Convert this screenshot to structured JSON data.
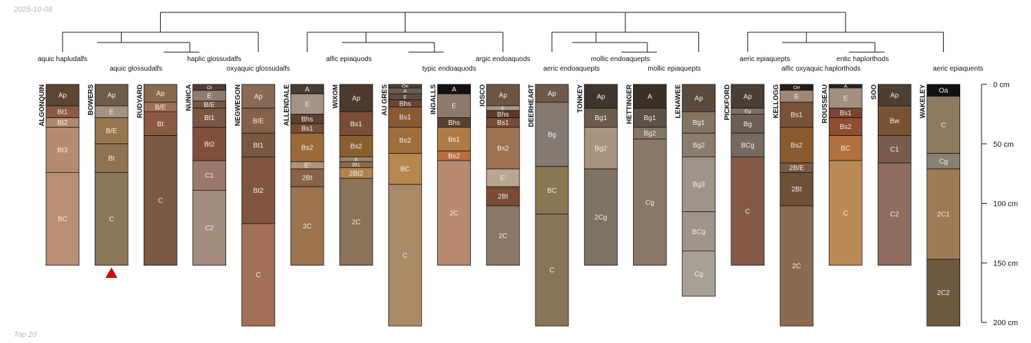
{
  "date": "2025-10-08",
  "footer": "Top 20",
  "depth_axis": {
    "unit": "cm",
    "max_depth": 200,
    "ticks": [
      {
        "depth": 0,
        "label": "0 cm"
      },
      {
        "depth": 50,
        "label": "50 cm"
      },
      {
        "depth": 100,
        "label": "100 cm"
      },
      {
        "depth": 150,
        "label": "150 cm"
      },
      {
        "depth": 200,
        "label": "200 cm"
      }
    ]
  },
  "marker": {
    "profile": "BOWERS",
    "shape": "triangle",
    "color": "#e00000"
  },
  "group_labels": [
    {
      "text": "aquic hapludalfs",
      "column": 0
    },
    {
      "text": "aquic glossudalfs",
      "column": 1.5
    },
    {
      "text": "haplic glossudalfs",
      "column": 3.1
    },
    {
      "text": "oxyaquic glossudalfs",
      "column": 4.0
    },
    {
      "text": "alfic epiaquods",
      "column": 5.85
    },
    {
      "text": "typic endoaquods",
      "column": 7.9
    },
    {
      "text": "argic endoaquods",
      "column": 9.0
    },
    {
      "text": "aeric endoaquepts",
      "column": 10.4
    },
    {
      "text": "mollic endoaquepts",
      "column": 11.4
    },
    {
      "text": "mollic epiaquepts",
      "column": 12.5
    },
    {
      "text": "aeric epiaquepts",
      "column": 14.35
    },
    {
      "text": "alfic oxyaquic haplorthods",
      "column": 15.5
    },
    {
      "text": "entic haplorthods",
      "column": 16.35
    },
    {
      "text": "aeric epiaquents",
      "column": 18.3
    }
  ],
  "profiles": [
    {
      "name": "ALGONQUIN",
      "horizons": [
        {
          "name": "Ap",
          "top": 0,
          "bottom": 18,
          "color": "#5b4533"
        },
        {
          "name": "Bt1",
          "top": 18,
          "bottom": 28,
          "color": "#8a5a40"
        },
        {
          "name": "Bt2",
          "top": 28,
          "bottom": 36,
          "color": "#b08870"
        },
        {
          "name": "Bt3",
          "top": 36,
          "bottom": 74,
          "color": "#b58a6e"
        },
        {
          "name": "BC",
          "top": 74,
          "bottom": 152,
          "color": "#b98e72"
        }
      ]
    },
    {
      "name": "BOWERS",
      "horizons": [
        {
          "name": "Ap",
          "top": 0,
          "bottom": 18,
          "color": "#6f5c4a"
        },
        {
          "name": "E",
          "top": 18,
          "bottom": 28,
          "color": "#a69280"
        },
        {
          "name": "B/E",
          "top": 28,
          "bottom": 50,
          "color": "#97764f"
        },
        {
          "name": "Bt",
          "top": 50,
          "bottom": 74,
          "color": "#8f7250"
        },
        {
          "name": "C",
          "top": 74,
          "bottom": 152,
          "color": "#8c7658"
        }
      ]
    },
    {
      "name": "RUDYARD",
      "horizons": [
        {
          "name": "Ap",
          "top": 0,
          "bottom": 15,
          "color": "#8a6a4e"
        },
        {
          "name": "B/E",
          "top": 15,
          "bottom": 23,
          "color": "#a07055"
        },
        {
          "name": "Bt",
          "top": 23,
          "bottom": 43,
          "color": "#8c5a42"
        },
        {
          "name": "C",
          "top": 43,
          "bottom": 152,
          "color": "#7d5844"
        }
      ]
    },
    {
      "name": "NUNICA",
      "horizons": [
        {
          "name": "Oi",
          "top": 0,
          "bottom": 5,
          "color": "#4f3d31"
        },
        {
          "name": "E",
          "top": 5,
          "bottom": 14,
          "color": "#8f7d73"
        },
        {
          "name": "B/E",
          "top": 14,
          "bottom": 20,
          "color": "#7a5645"
        },
        {
          "name": "Bt1",
          "top": 20,
          "bottom": 36,
          "color": "#7e5646"
        },
        {
          "name": "Bt2",
          "top": 36,
          "bottom": 64,
          "color": "#80503f"
        },
        {
          "name": "C1",
          "top": 64,
          "bottom": 89,
          "color": "#9b786a"
        },
        {
          "name": "C2",
          "top": 89,
          "bottom": 152,
          "color": "#a48c7e"
        }
      ]
    },
    {
      "name": "NEGWEGON",
      "horizons": [
        {
          "name": "Ap",
          "top": 0,
          "bottom": 20,
          "color": "#8a6a54"
        },
        {
          "name": "B/E",
          "top": 20,
          "bottom": 41,
          "color": "#86604a"
        },
        {
          "name": "Bt1",
          "top": 41,
          "bottom": 61,
          "color": "#7a5643"
        },
        {
          "name": "Bt2",
          "top": 61,
          "bottom": 117,
          "color": "#82553f"
        },
        {
          "name": "C",
          "top": 117,
          "bottom": 203,
          "color": "#a47055"
        }
      ]
    },
    {
      "name": "ALLENDALE",
      "horizons": [
        {
          "name": "A",
          "top": 0,
          "bottom": 8,
          "color": "#4a3b31"
        },
        {
          "name": "E",
          "top": 8,
          "bottom": 25,
          "color": "#a49486"
        },
        {
          "name": "Bhs",
          "top": 25,
          "bottom": 33,
          "color": "#5e4030"
        },
        {
          "name": "Bs1",
          "top": 33,
          "bottom": 41,
          "color": "#7a4e34"
        },
        {
          "name": "Bs2",
          "top": 41,
          "bottom": 65,
          "color": "#9a6a3a"
        },
        {
          "name": "E'",
          "top": 65,
          "bottom": 71,
          "color": "#b09474"
        },
        {
          "name": "2Bt",
          "top": 71,
          "bottom": 86,
          "color": "#8a6248"
        },
        {
          "name": "2C",
          "top": 86,
          "bottom": 152,
          "color": "#9c7450"
        }
      ]
    },
    {
      "name": "WIXOM",
      "horizons": [
        {
          "name": "Ap",
          "top": 0,
          "bottom": 23,
          "color": "#4e3a2c"
        },
        {
          "name": "Bs1",
          "top": 23,
          "bottom": 43,
          "color": "#7a4e34"
        },
        {
          "name": "Bs2",
          "top": 43,
          "bottom": 61,
          "color": "#8a5f30"
        },
        {
          "name": "E",
          "top": 61,
          "bottom": 65,
          "color": "#9c8470"
        },
        {
          "name": "Bt1",
          "top": 65,
          "bottom": 70,
          "color": "#8e6a48"
        },
        {
          "name": "2Bt2",
          "top": 70,
          "bottom": 79,
          "color": "#b0844e"
        },
        {
          "name": "2C",
          "top": 79,
          "bottom": 152,
          "color": "#8a7358"
        }
      ]
    },
    {
      "name": "AU GRES",
      "horizons": [
        {
          "name": "Oe",
          "top": 0,
          "bottom": 3,
          "color": "#4e4038"
        },
        {
          "name": "A",
          "top": 3,
          "bottom": 8,
          "color": "#6a5a50"
        },
        {
          "name": "E",
          "top": 8,
          "bottom": 13,
          "color": "#5e4a40"
        },
        {
          "name": "Bhs",
          "top": 13,
          "bottom": 19,
          "color": "#6a4434"
        },
        {
          "name": "Bs1",
          "top": 19,
          "bottom": 36,
          "color": "#8a5a34"
        },
        {
          "name": "Bs2",
          "top": 36,
          "bottom": 58,
          "color": "#a06e3c"
        },
        {
          "name": "BC",
          "top": 58,
          "bottom": 84,
          "color": "#b4884e"
        },
        {
          "name": "C",
          "top": 84,
          "bottom": 203,
          "color": "#a88a66"
        }
      ]
    },
    {
      "name": "INGALLS",
      "horizons": [
        {
          "name": "A",
          "top": 0,
          "bottom": 8,
          "color": "#141210"
        },
        {
          "name": "E",
          "top": 8,
          "bottom": 28,
          "color": "#8c7a6c"
        },
        {
          "name": "Bhs",
          "top": 28,
          "bottom": 36,
          "color": "#5a4232"
        },
        {
          "name": "Bs1",
          "top": 36,
          "bottom": 56,
          "color": "#b07a46"
        },
        {
          "name": "Bs2",
          "top": 56,
          "bottom": 64,
          "color": "#b86e3e"
        },
        {
          "name": "2C",
          "top": 64,
          "bottom": 152,
          "color": "#b88a70"
        }
      ]
    },
    {
      "name": "IOSCO",
      "horizons": [
        {
          "name": "Ap",
          "top": 0,
          "bottom": 18,
          "color": "#6e5543"
        },
        {
          "name": "E",
          "top": 18,
          "bottom": 22,
          "color": "#a69888"
        },
        {
          "name": "Bhs",
          "top": 22,
          "bottom": 28,
          "color": "#5b3b30"
        },
        {
          "name": "Bs1",
          "top": 28,
          "bottom": 36,
          "color": "#7b4a36"
        },
        {
          "name": "Bs2",
          "top": 36,
          "bottom": 71,
          "color": "#9c7252"
        },
        {
          "name": "E'",
          "top": 71,
          "bottom": 86,
          "color": "#b8a690"
        },
        {
          "name": "2Bt",
          "top": 86,
          "bottom": 102,
          "color": "#7a4b33"
        },
        {
          "name": "2C",
          "top": 102,
          "bottom": 152,
          "color": "#8a7866"
        }
      ]
    },
    {
      "name": "DEERHEART",
      "horizons": [
        {
          "name": "Ap",
          "top": 0,
          "bottom": 15,
          "color": "#6e5a4a"
        },
        {
          "name": "Bg",
          "top": 15,
          "bottom": 69,
          "color": "#847a72"
        },
        {
          "name": "BC",
          "top": 69,
          "bottom": 109,
          "color": "#8a7650"
        },
        {
          "name": "C",
          "top": 109,
          "bottom": 203,
          "color": "#8a7458"
        }
      ]
    },
    {
      "name": "TONKEY",
      "horizons": [
        {
          "name": "Ap",
          "top": 0,
          "bottom": 20,
          "color": "#3e3630"
        },
        {
          "name": "Bg1",
          "top": 20,
          "bottom": 36,
          "color": "#6c5c4c"
        },
        {
          "name": "Bg2",
          "top": 36,
          "bottom": 71,
          "color": "#a8947e"
        },
        {
          "name": "2Cg",
          "top": 71,
          "bottom": 152,
          "color": "#7e7264"
        }
      ]
    },
    {
      "name": "HETTINGER",
      "horizons": [
        {
          "name": "A",
          "top": 0,
          "bottom": 20,
          "color": "#3a3028"
        },
        {
          "name": "Bg1",
          "top": 20,
          "bottom": 36,
          "color": "#5e5044"
        },
        {
          "name": "Bg2",
          "top": 36,
          "bottom": 46,
          "color": "#847464"
        },
        {
          "name": "Cg",
          "top": 46,
          "bottom": 152,
          "color": "#8a7866"
        }
      ]
    },
    {
      "name": "LENAWEE",
      "horizons": [
        {
          "name": "Ap",
          "top": 0,
          "bottom": 23,
          "color": "#5a4a3e"
        },
        {
          "name": "Bg1",
          "top": 23,
          "bottom": 41,
          "color": "#847464"
        },
        {
          "name": "Bg2",
          "top": 41,
          "bottom": 61,
          "color": "#8c7c6e"
        },
        {
          "name": "Bg3",
          "top": 61,
          "bottom": 107,
          "color": "#a09488"
        },
        {
          "name": "BCg",
          "top": 107,
          "bottom": 140,
          "color": "#a0948a"
        },
        {
          "name": "Cg",
          "top": 140,
          "bottom": 178,
          "color": "#a8a096"
        }
      ]
    },
    {
      "name": "PICKFORD",
      "horizons": [
        {
          "name": "Ap",
          "top": 0,
          "bottom": 20,
          "color": "#4a3e36"
        },
        {
          "name": "Eg",
          "top": 20,
          "bottom": 25,
          "color": "#7e6e64"
        },
        {
          "name": "Bg",
          "top": 25,
          "bottom": 41,
          "color": "#6e5e54"
        },
        {
          "name": "BCg",
          "top": 41,
          "bottom": 61,
          "color": "#766a62"
        },
        {
          "name": "C",
          "top": 61,
          "bottom": 152,
          "color": "#845a46"
        }
      ]
    },
    {
      "name": "KELLOGG",
      "horizons": [
        {
          "name": "Oe",
          "top": 0,
          "bottom": 5,
          "color": "#26201c"
        },
        {
          "name": "E",
          "top": 5,
          "bottom": 15,
          "color": "#a08878"
        },
        {
          "name": "Bs1",
          "top": 15,
          "bottom": 36,
          "color": "#7a5238"
        },
        {
          "name": "Bs2",
          "top": 36,
          "bottom": 66,
          "color": "#8a5a30"
        },
        {
          "name": "2B/E",
          "top": 66,
          "bottom": 74,
          "color": "#7a5a44"
        },
        {
          "name": "2Bt",
          "top": 74,
          "bottom": 102,
          "color": "#6e5038"
        },
        {
          "name": "2C",
          "top": 102,
          "bottom": 203,
          "color": "#8c6a50"
        }
      ]
    },
    {
      "name": "ROUSSEAU",
      "horizons": [
        {
          "name": "A",
          "top": 0,
          "bottom": 3,
          "color": "#2a2420"
        },
        {
          "name": "E",
          "top": 3,
          "bottom": 20,
          "color": "#a49080"
        },
        {
          "name": "Bs1",
          "top": 20,
          "bottom": 28,
          "color": "#7a4432"
        },
        {
          "name": "Bs2",
          "top": 28,
          "bottom": 43,
          "color": "#8e4e30"
        },
        {
          "name": "BC",
          "top": 43,
          "bottom": 64,
          "color": "#b07040"
        },
        {
          "name": "C",
          "top": 64,
          "bottom": 152,
          "color": "#bc8a56"
        }
      ]
    },
    {
      "name": "SOO",
      "horizons": [
        {
          "name": "Ap",
          "top": 0,
          "bottom": 18,
          "color": "#4e3e32"
        },
        {
          "name": "Bw",
          "top": 18,
          "bottom": 43,
          "color": "#7a5232"
        },
        {
          "name": "C1",
          "top": 43,
          "bottom": 66,
          "color": "#7a5c4c"
        },
        {
          "name": "C2",
          "top": 66,
          "bottom": 152,
          "color": "#8e6c5e"
        }
      ]
    },
    {
      "name": "WAKELEY",
      "horizons": [
        {
          "name": "Oa",
          "top": 0,
          "bottom": 10,
          "color": "#121212"
        },
        {
          "name": "C",
          "top": 10,
          "bottom": 58,
          "color": "#8e7a60"
        },
        {
          "name": "Cg",
          "top": 58,
          "bottom": 71,
          "color": "#8a8070"
        },
        {
          "name": "2C1",
          "top": 71,
          "bottom": 147,
          "color": "#a07a56"
        },
        {
          "name": "2C2",
          "top": 147,
          "bottom": 203,
          "color": "#6e5840"
        }
      ]
    }
  ]
}
